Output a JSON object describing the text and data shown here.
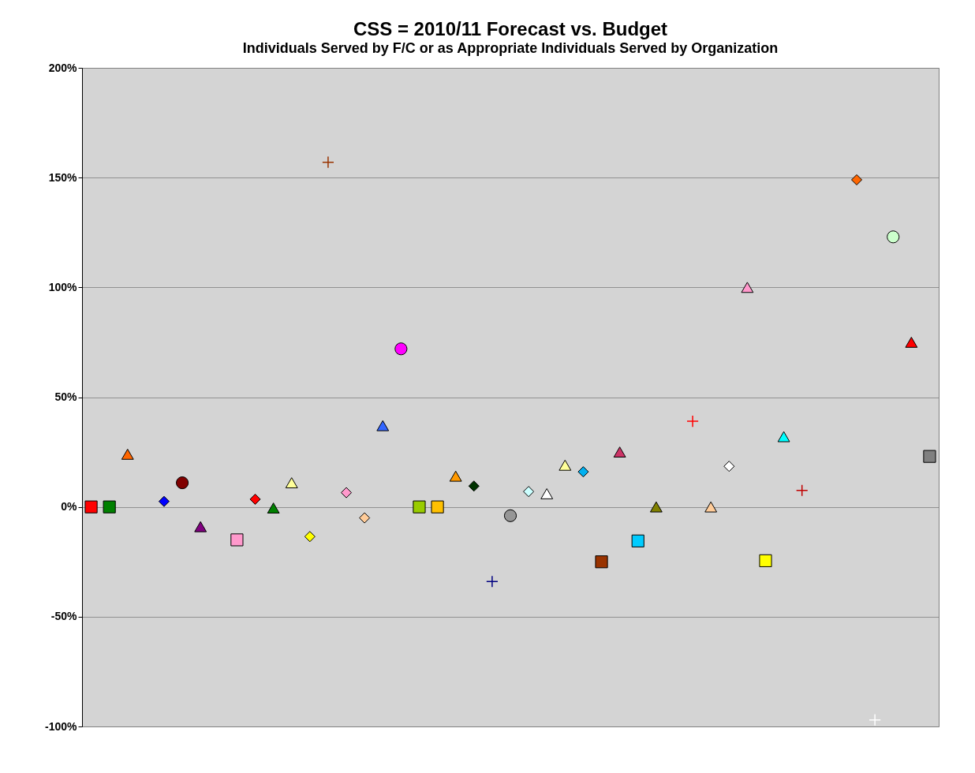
{
  "chart_data": {
    "type": "scatter",
    "title": "CSS = 2010/11 Forecast vs. Budget",
    "subtitle": "Individuals Served by F/C or as Appropriate Individuals Served by Organization",
    "categories": [
      null,
      null,
      null,
      null,
      null,
      null,
      null,
      null,
      null,
      null,
      null,
      null,
      null,
      null,
      null,
      null,
      null,
      null,
      null,
      null,
      null,
      null,
      null,
      null,
      null,
      null,
      null,
      null,
      null,
      null,
      null,
      null,
      null,
      null,
      null,
      null,
      null,
      null,
      null,
      null,
      null,
      null,
      null,
      null,
      null,
      null,
      null
    ],
    "ylim": [
      -100,
      200
    ],
    "yticks": [
      {
        "value": -100,
        "label": "-100%"
      },
      {
        "value": -50,
        "label": "-50%"
      },
      {
        "value": 0,
        "label": "0%"
      },
      {
        "value": 50,
        "label": "50%"
      },
      {
        "value": 100,
        "label": "100%"
      },
      {
        "value": 150,
        "label": "150%"
      },
      {
        "value": 200,
        "label": "200%"
      }
    ],
    "grid": "y",
    "tick_labels": "y",
    "series": [
      {
        "marker": "square",
        "values": [
          0,
          0,
          null,
          null,
          null,
          null,
          null,
          null,
          -15,
          null,
          null,
          null,
          null,
          null,
          null,
          null,
          null,
          null,
          0,
          0,
          null,
          null,
          null,
          null,
          null,
          null,
          null,
          null,
          -25,
          null,
          -15.5,
          null,
          null,
          null,
          null,
          null,
          null,
          -24.5,
          null,
          null,
          null,
          null,
          null,
          null,
          null,
          null,
          23
        ],
        "colors": [
          "#ff0000",
          "#008000",
          null,
          null,
          null,
          null,
          null,
          null,
          "#ff99cc",
          null,
          null,
          null,
          null,
          null,
          null,
          null,
          null,
          null,
          "#99cc00",
          "#ffc000",
          null,
          null,
          null,
          null,
          null,
          null,
          null,
          null,
          "#993300",
          null,
          "#00ccff",
          null,
          null,
          null,
          null,
          null,
          null,
          "#ffff00",
          null,
          null,
          null,
          null,
          null,
          null,
          null,
          null,
          "#808080"
        ]
      },
      {
        "marker": "triangle",
        "values": [
          null,
          null,
          24,
          null,
          null,
          null,
          -9,
          null,
          null,
          null,
          -0.5,
          11,
          null,
          null,
          null,
          null,
          37,
          null,
          null,
          null,
          14,
          null,
          null,
          null,
          null,
          6,
          19,
          null,
          null,
          25,
          null,
          0,
          null,
          null,
          0,
          null,
          100,
          null,
          32,
          null,
          null,
          null,
          null,
          null,
          null,
          75,
          null
        ],
        "colors": [
          null,
          null,
          "#ff6600",
          null,
          null,
          null,
          "#800080",
          null,
          null,
          null,
          "#008000",
          "#ffff99",
          null,
          null,
          null,
          null,
          "#3366ff",
          null,
          null,
          null,
          "#ff9900",
          null,
          null,
          null,
          null,
          "#ffffff",
          "#ffff99",
          null,
          null,
          "#cc3366",
          null,
          "#808000",
          null,
          null,
          "#ffcc99",
          null,
          "#ff99cc",
          null,
          "#00ffff",
          null,
          null,
          null,
          null,
          null,
          null,
          "#ff0000",
          null
        ]
      },
      {
        "marker": "diamond",
        "values": [
          null,
          null,
          null,
          null,
          2.5,
          null,
          null,
          null,
          null,
          3.5,
          null,
          null,
          -13.5,
          null,
          6.5,
          -5,
          null,
          null,
          null,
          null,
          null,
          9.5,
          null,
          null,
          7,
          null,
          null,
          16,
          null,
          null,
          null,
          null,
          null,
          null,
          null,
          18.5,
          null,
          null,
          null,
          null,
          null,
          null,
          149,
          null,
          null,
          null,
          null
        ],
        "colors": [
          null,
          null,
          null,
          null,
          "#0000ff",
          null,
          null,
          null,
          null,
          "#ff0000",
          null,
          null,
          "#ffff00",
          null,
          "#ff99cc",
          "#ffcc99",
          null,
          null,
          null,
          null,
          null,
          "#003300",
          null,
          null,
          "#ccffff",
          null,
          null,
          "#00b0f0",
          null,
          null,
          null,
          null,
          null,
          null,
          null,
          "#ffffff",
          null,
          null,
          null,
          null,
          null,
          null,
          "#ff6600",
          null,
          null,
          null,
          null
        ]
      },
      {
        "marker": "circle",
        "values": [
          null,
          null,
          null,
          null,
          null,
          11,
          null,
          null,
          null,
          null,
          null,
          null,
          null,
          null,
          null,
          null,
          null,
          72,
          null,
          null,
          null,
          null,
          null,
          -4,
          null,
          null,
          null,
          null,
          null,
          null,
          null,
          null,
          null,
          null,
          null,
          null,
          null,
          null,
          null,
          null,
          null,
          null,
          null,
          null,
          123,
          null,
          null
        ],
        "colors": [
          null,
          null,
          null,
          null,
          null,
          "#800000",
          null,
          null,
          null,
          null,
          null,
          null,
          null,
          null,
          null,
          null,
          null,
          "#ff00ff",
          null,
          null,
          null,
          null,
          null,
          "#969696",
          null,
          null,
          null,
          null,
          null,
          null,
          null,
          null,
          null,
          null,
          null,
          null,
          null,
          null,
          null,
          null,
          null,
          null,
          null,
          null,
          "#ccffcc",
          null,
          null
        ]
      },
      {
        "marker": "cross",
        "values": [
          null,
          null,
          null,
          null,
          null,
          null,
          null,
          null,
          null,
          null,
          null,
          null,
          null,
          157,
          null,
          null,
          null,
          null,
          null,
          null,
          null,
          null,
          -34,
          null,
          null,
          null,
          null,
          null,
          null,
          null,
          null,
          null,
          null,
          null,
          null,
          null,
          null,
          null,
          null,
          null,
          null,
          null,
          null,
          -97,
          null,
          null,
          null
        ],
        "colors": [
          null,
          null,
          null,
          null,
          null,
          null,
          null,
          null,
          null,
          null,
          null,
          null,
          null,
          "#993300",
          null,
          null,
          null,
          null,
          null,
          null,
          null,
          null,
          "#000080",
          null,
          null,
          null,
          null,
          null,
          null,
          null,
          null,
          null,
          null,
          null,
          null,
          null,
          null,
          null,
          null,
          null,
          null,
          null,
          null,
          "#ffffff",
          null,
          null,
          null
        ]
      },
      {
        "marker": "cross",
        "values": [
          null,
          null,
          null,
          null,
          null,
          null,
          null,
          null,
          null,
          null,
          null,
          null,
          null,
          null,
          null,
          null,
          null,
          null,
          null,
          null,
          null,
          null,
          null,
          null,
          null,
          null,
          null,
          null,
          null,
          null,
          null,
          null,
          null,
          39,
          null,
          null,
          null,
          null,
          null,
          7.5,
          null,
          null,
          null,
          null,
          null,
          null,
          null
        ],
        "colors": [
          null,
          null,
          null,
          null,
          null,
          null,
          null,
          null,
          null,
          null,
          null,
          null,
          null,
          null,
          null,
          null,
          null,
          null,
          null,
          null,
          null,
          null,
          null,
          null,
          null,
          null,
          null,
          null,
          null,
          null,
          null,
          null,
          null,
          "#ff0000",
          null,
          null,
          null,
          null,
          null,
          "#c00000",
          null,
          null,
          null,
          null,
          null,
          null,
          null
        ]
      }
    ]
  }
}
